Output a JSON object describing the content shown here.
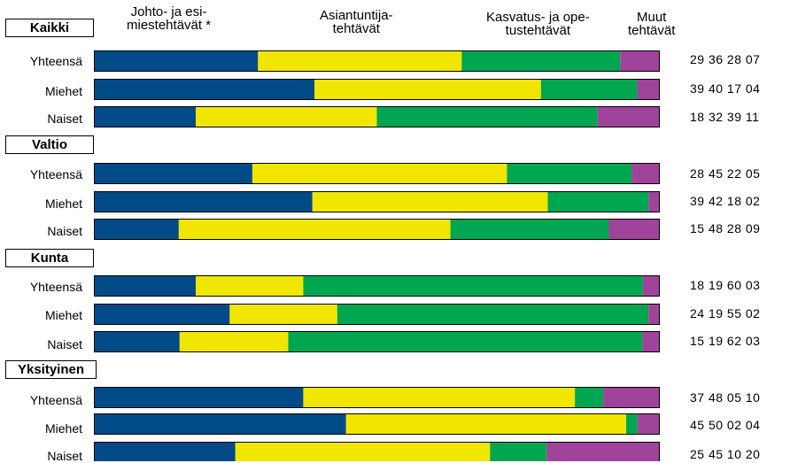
{
  "columns": [
    {
      "line1": "Johto- ja esi-",
      "line2": "miestehtävät *"
    },
    {
      "line1": "Asiantuntija-",
      "line2": "tehtävät"
    },
    {
      "line1": "Kasvatus- ja ope-",
      "line2": "tustehtävät"
    },
    {
      "line1": "Muut",
      "line2": "tehtävät"
    }
  ],
  "colors": {
    "johto": "#004a87",
    "asiantuntija": "#f0e600",
    "kasvatus": "#00a650",
    "muut": "#a0439a",
    "outline": "#000000"
  },
  "chart_data": {
    "type": "bar",
    "orientation": "horizontal",
    "stacked": true,
    "normalized": true,
    "series_names": [
      "Johto- ja esimiestehtävät *",
      "Asiantuntijatehtävät",
      "Kasvatus- ja opetustehtävät",
      "Muut tehtävät"
    ],
    "groups": [
      {
        "name": "Kaikki",
        "rows": [
          {
            "label": "Yhteensä",
            "values": [
              29,
              36,
              28,
              7
            ],
            "text": "29 36 28 07"
          },
          {
            "label": "Miehet",
            "values": [
              39,
              40,
              17,
              4
            ],
            "text": "39 40 17 04"
          },
          {
            "label": "Naiset",
            "values": [
              18,
              32,
              39,
              11
            ],
            "text": "18 32 39 11"
          }
        ]
      },
      {
        "name": "Valtio",
        "rows": [
          {
            "label": "Yhteensä",
            "values": [
              28,
              45,
              22,
              5
            ],
            "text": "28 45 22 05"
          },
          {
            "label": "Miehet",
            "values": [
              39,
              42,
              18,
              2
            ],
            "text": "39 42 18 02"
          },
          {
            "label": "Naiset",
            "values": [
              15,
              48,
              28,
              9
            ],
            "text": "15 48 28 09"
          }
        ]
      },
      {
        "name": "Kunta",
        "rows": [
          {
            "label": "Yhteensä",
            "values": [
              18,
              19,
              60,
              3
            ],
            "text": "18 19 60 03"
          },
          {
            "label": "Miehet",
            "values": [
              24,
              19,
              55,
              2
            ],
            "text": "24 19 55 02"
          },
          {
            "label": "Naiset",
            "values": [
              15,
              19,
              62,
              3
            ],
            "text": "15 19 62 03"
          }
        ]
      },
      {
        "name": "Yksityinen",
        "rows": [
          {
            "label": "Yhteensä",
            "values": [
              37,
              48,
              5,
              10
            ],
            "text": "37 48 05 10"
          },
          {
            "label": "Miehet",
            "values": [
              45,
              50,
              2,
              4
            ],
            "text": "45 50 02 04"
          },
          {
            "label": "Naiset",
            "values": [
              25,
              45,
              10,
              20
            ],
            "text": "25 45 10 20"
          }
        ]
      }
    ]
  }
}
